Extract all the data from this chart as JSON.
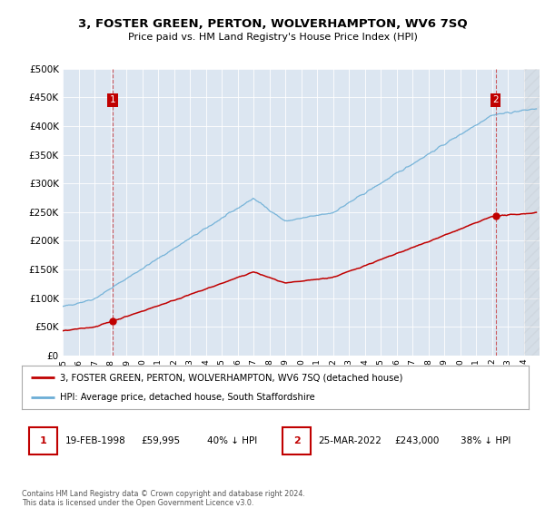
{
  "title": "3, FOSTER GREEN, PERTON, WOLVERHAMPTON, WV6 7SQ",
  "subtitle": "Price paid vs. HM Land Registry's House Price Index (HPI)",
  "legend_line1": "3, FOSTER GREEN, PERTON, WOLVERHAMPTON, WV6 7SQ (detached house)",
  "legend_line2": "HPI: Average price, detached house, South Staffordshire",
  "annotation1_date": "19-FEB-1998",
  "annotation1_price": "£59,995",
  "annotation1_note": "40% ↓ HPI",
  "annotation2_date": "25-MAR-2022",
  "annotation2_price": "£243,000",
  "annotation2_note": "38% ↓ HPI",
  "footer": "Contains HM Land Registry data © Crown copyright and database right 2024.\nThis data is licensed under the Open Government Licence v3.0.",
  "sale1_year": 1998.13,
  "sale1_price": 59995,
  "sale2_year": 2022.23,
  "sale2_price": 243000,
  "hpi_color": "#6baed6",
  "price_color": "#c00000",
  "annotation_box_color": "#c00000",
  "bg_color": "#dce6f1",
  "plot_bg": "#ffffff",
  "ylim_min": 0,
  "ylim_max": 500000,
  "xlim_min": 1995,
  "xlim_max": 2025
}
